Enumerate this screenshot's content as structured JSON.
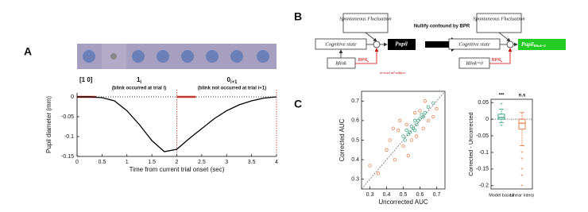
{
  "panel_labels": [
    "A",
    "B",
    "C"
  ],
  "chart_data": [
    {
      "type": "line",
      "x_label": "Time from current trial onset (sec)",
      "y_label": "Pupil diameter (mm)",
      "annotations": {
        "code": "[1 0]",
        "first": {
          "main": "1",
          "sub": "i",
          "note": "(blink occurred at trial i)"
        },
        "second": {
          "main": "0",
          "sub": "i+1",
          "note": "(blink not occurred at trial i+1)"
        }
      },
      "x": [
        0,
        0.25,
        0.5,
        0.75,
        1,
        1.25,
        1.5,
        1.75,
        2,
        2.25,
        2.5,
        2.75,
        3,
        3.25,
        3.5,
        3.75,
        4
      ],
      "series": [
        {
          "color": "#000000",
          "values": [
            0,
            0,
            -0.002,
            -0.01,
            -0.035,
            -0.07,
            -0.11,
            -0.138,
            -0.132,
            -0.105,
            -0.08,
            -0.055,
            -0.035,
            -0.02,
            -0.01,
            -0.003,
            0
          ]
        }
      ],
      "xlim": [
        0,
        4
      ],
      "xticks": [
        0,
        0.5,
        1,
        1.5,
        2,
        2.5,
        3,
        3.5,
        4
      ],
      "ylim": [
        -0.15,
        0.01
      ],
      "yticks": [
        0,
        -0.05,
        -0.1,
        -0.15
      ]
    },
    {
      "type": "scatter",
      "x_label": "Uncorrected AUC",
      "y_label": "Corrected AUC",
      "xlim": [
        0.25,
        0.75
      ],
      "xticks": [
        0.3,
        0.4,
        0.5,
        0.6,
        0.7
      ],
      "ylim": [
        0.25,
        0.75
      ],
      "yticks": [
        0.3,
        0.4,
        0.5,
        0.6,
        0.7
      ],
      "series": [
        {
          "color": "#2a9d7a",
          "x": [
            0.5,
            0.52,
            0.53,
            0.55,
            0.56,
            0.57,
            0.58,
            0.6,
            0.61,
            0.62,
            0.54,
            0.59,
            0.63,
            0.65,
            0.51,
            0.57,
            0.68
          ],
          "values": [
            0.52,
            0.55,
            0.53,
            0.57,
            0.56,
            0.6,
            0.58,
            0.61,
            0.63,
            0.62,
            0.54,
            0.6,
            0.64,
            0.67,
            0.5,
            0.55,
            0.69
          ]
        },
        {
          "color": "#e8743b",
          "x": [
            0.3,
            0.35,
            0.4,
            0.42,
            0.45,
            0.47,
            0.5,
            0.52,
            0.55,
            0.58,
            0.6,
            0.62,
            0.65,
            0.68,
            0.7,
            0.48,
            0.53,
            0.44,
            0.63,
            0.57
          ],
          "values": [
            0.37,
            0.33,
            0.45,
            0.5,
            0.4,
            0.55,
            0.47,
            0.58,
            0.5,
            0.52,
            0.65,
            0.56,
            0.6,
            0.62,
            0.66,
            0.6,
            0.42,
            0.56,
            0.7,
            0.64
          ]
        }
      ]
    },
    {
      "type": "box",
      "y_label": "Corrected - Uncorrected",
      "categories": [
        "Model based",
        "Linear interp"
      ],
      "significance": [
        "***",
        "n.s"
      ],
      "ylim": [
        -0.21,
        0.06
      ],
      "yticks": [
        0.05,
        0,
        -0.05,
        -0.1,
        -0.15,
        -0.2
      ],
      "boxes": [
        {
          "color": "#2a9d7a",
          "whislo": -0.01,
          "q1": 0,
          "median": 0.005,
          "q3": 0.015,
          "whishi": 0.03,
          "outliers": [
            0.045,
            -0.02
          ]
        },
        {
          "color": "#e8743b",
          "whislo": -0.08,
          "q1": -0.03,
          "median": -0.012,
          "q3": 0,
          "whishi": 0.02,
          "outliers": [
            -0.1,
            -0.12,
            -0.15,
            -0.17,
            -0.2
          ]
        }
      ]
    }
  ],
  "diagram": {
    "arrow_label": "Nullify confound by BPR",
    "left": {
      "fluctuation": "Spontaneous Fluctuation",
      "cognitive": "Cognitive state",
      "pupil": "Pupil",
      "blink": "Blink",
      "bpr": "BPR",
      "bpr_sub": "k",
      "note": "in-trial all subject"
    },
    "right": {
      "fluctuation": "Spontaneous Fluctuation",
      "cognitive": "Cognitive state",
      "pupil": "Pupil",
      "pupil_sub": "Blink=0",
      "blink": "Blink=0",
      "bpr": "BPR",
      "bpr_sub": "k"
    }
  }
}
